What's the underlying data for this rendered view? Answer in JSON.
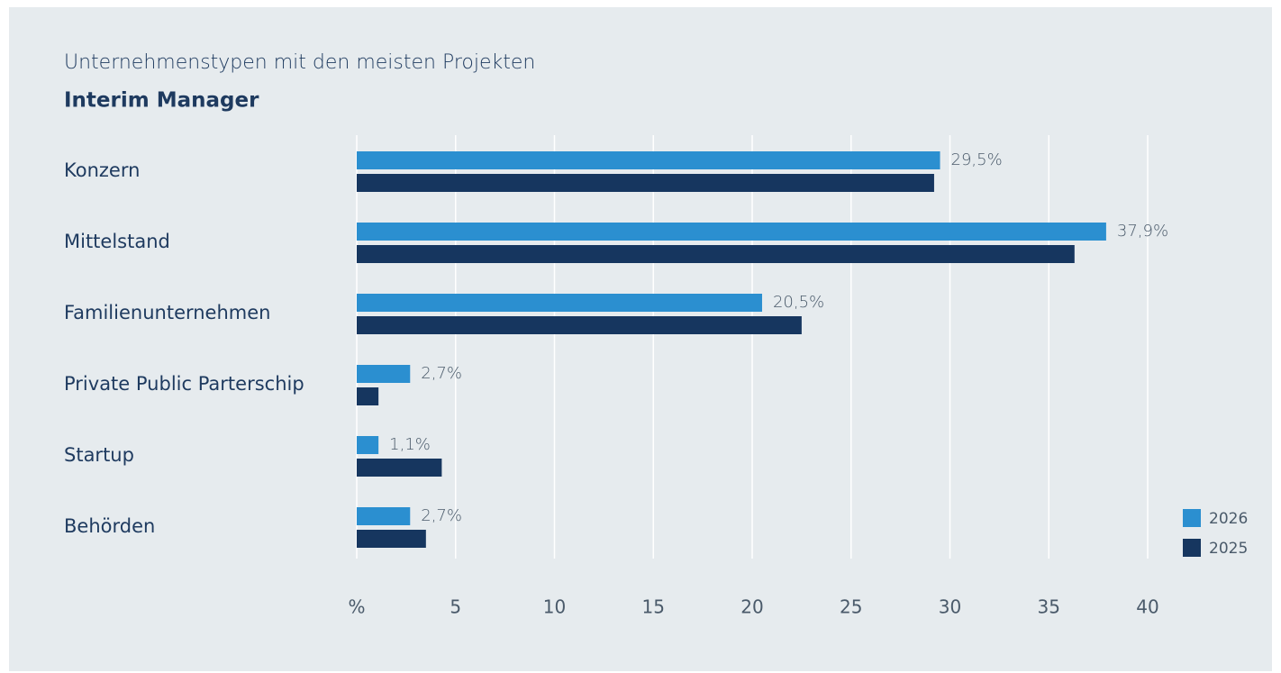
{
  "chart_data": {
    "type": "hbar",
    "title": "Unternehmenstypen mit den meisten Projekten",
    "subtitle": "Interim Manager",
    "categories": [
      "Konzern",
      "Mittelstand",
      "Familienunternehmen",
      "Private Public Parterschip",
      "Startup",
      "Behörden"
    ],
    "series": [
      {
        "name": "2026",
        "color": "#2b8fd0",
        "values": [
          29.5,
          37.9,
          20.5,
          2.7,
          1.1,
          2.7
        ],
        "value_labels": [
          "29,5%",
          "37,9%",
          "20,5%",
          "2,7%",
          "1,1%",
          "2,7%"
        ]
      },
      {
        "name": "2025",
        "color": "#16365f",
        "values": [
          29.2,
          36.3,
          22.5,
          1.1,
          4.3,
          3.5
        ]
      }
    ],
    "xlim": [
      0,
      40
    ],
    "xticks": [
      {
        "value": 0,
        "label": "%"
      },
      5,
      10,
      15,
      20,
      25,
      30,
      35,
      40
    ],
    "grid": true,
    "legend": "bottom-right"
  }
}
